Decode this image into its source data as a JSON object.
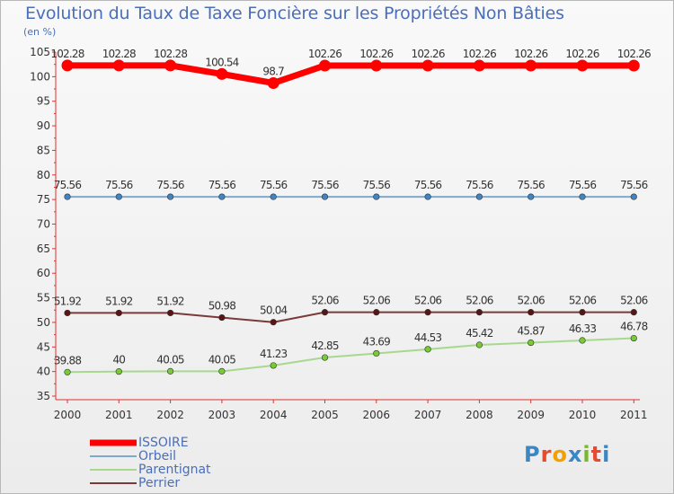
{
  "chart_data": {
    "type": "line",
    "title": "Evolution du Taux de Taxe Foncière sur les Propriétés Non Bâties",
    "ylabel": "(en %)",
    "xlabel": "",
    "categories": [
      "2000",
      "2001",
      "2002",
      "2003",
      "2004",
      "2005",
      "2006",
      "2007",
      "2008",
      "2009",
      "2010",
      "2011"
    ],
    "ylim": [
      35,
      105
    ],
    "yticks": [
      35,
      40,
      45,
      50,
      55,
      60,
      65,
      70,
      75,
      80,
      85,
      90,
      95,
      100,
      105
    ],
    "grid": false,
    "legend_position": "bottom-left",
    "series": [
      {
        "name": "ISSOIRE",
        "color": "#ff0000",
        "point_color": "#ff0000",
        "values": [
          102.28,
          102.28,
          102.28,
          100.54,
          98.7,
          102.26,
          102.26,
          102.26,
          102.26,
          102.26,
          102.26,
          102.26
        ],
        "labels": [
          "102.28",
          "102.28",
          "102.28",
          "100.54",
          "98.7",
          "102.26",
          "102.26",
          "102.26",
          "102.26",
          "102.26",
          "102.26",
          "102.26"
        ]
      },
      {
        "name": "Orbeil",
        "color": "#7fa8cc",
        "point_color": "#3d85c6",
        "values": [
          75.56,
          75.56,
          75.56,
          75.56,
          75.56,
          75.56,
          75.56,
          75.56,
          75.56,
          75.56,
          75.56,
          75.56
        ],
        "labels": [
          "75.56",
          "75.56",
          "75.56",
          "75.56",
          "75.56",
          "75.56",
          "75.56",
          "75.56",
          "75.56",
          "75.56",
          "75.56",
          "75.56"
        ]
      },
      {
        "name": "Parentignat",
        "color": "#a8d890",
        "point_color": "#77cc33",
        "values": [
          39.88,
          40,
          40.05,
          40.05,
          41.23,
          42.85,
          43.69,
          44.53,
          45.42,
          45.87,
          46.33,
          46.78
        ],
        "labels": [
          "39.88",
          "40",
          "40.05",
          "40.05",
          "41.23",
          "42.85",
          "43.69",
          "44.53",
          "45.42",
          "45.87",
          "46.33",
          "46.78"
        ]
      },
      {
        "name": "Perrier",
        "color": "#7a3a3a",
        "point_color": "#5a1414",
        "values": [
          51.92,
          51.92,
          51.92,
          50.98,
          50.04,
          52.06,
          52.06,
          52.06,
          52.06,
          52.06,
          52.06,
          52.06
        ],
        "labels": [
          "51.92",
          "51.92",
          "51.92",
          "50.98",
          "50.04",
          "52.06",
          "52.06",
          "52.06",
          "52.06",
          "52.06",
          "52.06",
          "52.06"
        ]
      }
    ]
  },
  "logo": {
    "text": "Proxiti",
    "letters": [
      "P",
      "r",
      "o",
      "x",
      "i",
      "t",
      "i"
    ],
    "letter_colors": [
      "#3a87c8",
      "#e84a2e",
      "#f2a200",
      "#3a87c8",
      "#77b82e",
      "#e84a2e",
      "#3a87c8"
    ]
  }
}
